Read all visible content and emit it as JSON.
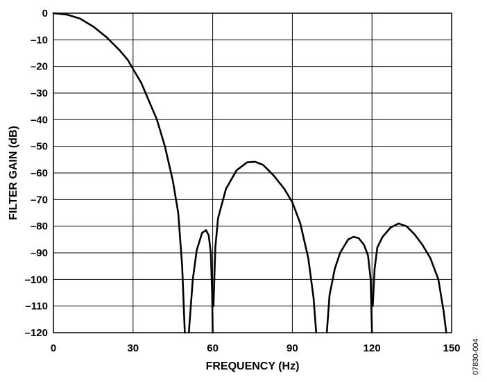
{
  "chart_data": {
    "type": "line",
    "xlabel": "FREQUENCY (Hz)",
    "ylabel": "FILTER GAIN (dB)",
    "xlim": [
      0,
      150
    ],
    "ylim": [
      -120,
      0
    ],
    "grid": true,
    "x_ticks": [
      0,
      30,
      60,
      90,
      120,
      150
    ],
    "x_tick_labels": [
      "0",
      "30",
      "60",
      "90",
      "120",
      "150"
    ],
    "y_ticks": [
      0,
      -10,
      -20,
      -30,
      -40,
      -50,
      -60,
      -70,
      -80,
      -90,
      -100,
      -110,
      -120
    ],
    "y_tick_labels": [
      "0",
      "–10",
      "–20",
      "–30",
      "–40",
      "–50",
      "–60",
      "–70",
      "–80",
      "–90",
      "–100",
      "–110",
      "–120"
    ],
    "figure_id": "07830-004",
    "series": [
      {
        "segments": [
          [
            [
              0,
              0
            ],
            [
              5,
              -0.5
            ],
            [
              10,
              -2
            ],
            [
              15,
              -5
            ],
            [
              20,
              -9
            ],
            [
              25,
              -14
            ],
            [
              28,
              -17.5
            ],
            [
              30,
              -21
            ],
            [
              33,
              -26
            ],
            [
              36,
              -33
            ],
            [
              39,
              -40
            ],
            [
              42,
              -50
            ],
            [
              45,
              -63
            ],
            [
              47,
              -75
            ],
            [
              48.5,
              -95
            ],
            [
              49.5,
              -120
            ]
          ],
          [
            [
              51,
              -120
            ],
            [
              52.5,
              -100
            ],
            [
              54,
              -89
            ],
            [
              56,
              -82.5
            ],
            [
              57.5,
              -81.5
            ],
            [
              58.5,
              -83.5
            ],
            [
              59.3,
              -90
            ],
            [
              59.8,
              -105
            ],
            [
              60,
              -120
            ]
          ],
          [
            [
              60.3,
              -110
            ],
            [
              61,
              -88
            ],
            [
              62,
              -77
            ],
            [
              65,
              -66
            ],
            [
              69,
              -59
            ],
            [
              73,
              -56
            ],
            [
              76,
              -55.8
            ],
            [
              79,
              -57
            ],
            [
              83,
              -61
            ],
            [
              87,
              -66
            ],
            [
              90,
              -71
            ],
            [
              93,
              -79
            ],
            [
              96,
              -92
            ],
            [
              98,
              -107
            ],
            [
              99,
              -120
            ]
          ],
          [
            [
              103,
              -120
            ],
            [
              104,
              -106
            ],
            [
              106,
              -96
            ],
            [
              108,
              -90
            ],
            [
              111,
              -85
            ],
            [
              113,
              -84
            ],
            [
              115,
              -84.5
            ],
            [
              117,
              -87
            ],
            [
              118.5,
              -91
            ],
            [
              119.5,
              -100
            ],
            [
              120,
              -120
            ]
          ],
          [
            [
              120.3,
              -110
            ],
            [
              121,
              -96
            ],
            [
              122,
              -88
            ],
            [
              124,
              -84
            ],
            [
              127,
              -80.5
            ],
            [
              130,
              -79
            ],
            [
              133,
              -80
            ],
            [
              136,
              -83
            ],
            [
              139,
              -87
            ],
            [
              142,
              -92
            ],
            [
              145,
              -100
            ],
            [
              147,
              -112
            ],
            [
              148,
              -120
            ]
          ]
        ]
      }
    ]
  }
}
